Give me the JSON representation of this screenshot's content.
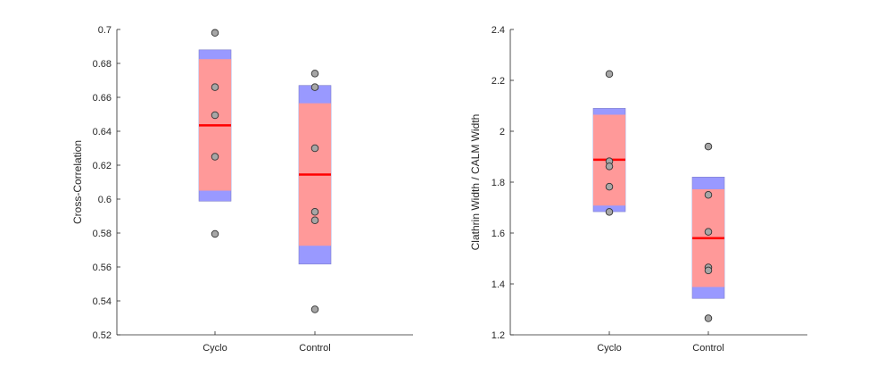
{
  "chart_data": [
    {
      "type": "box",
      "categories": [
        "Cyclo",
        "Control"
      ],
      "xlabel": "",
      "ylabel": "Cross-Correlation",
      "ylim": [
        0.52,
        0.7
      ],
      "yticks": [
        0.52,
        0.54,
        0.56,
        0.58,
        0.6,
        0.62,
        0.64,
        0.66,
        0.68,
        0.7
      ],
      "ytick_labels": [
        "0.52",
        "0.54",
        "0.56",
        "0.58",
        "0.6",
        "0.62",
        "0.64",
        "0.66",
        "0.68",
        "0.7"
      ],
      "grid": false,
      "boxes": [
        {
          "category": "Cyclo",
          "mean": 0.6435,
          "sd_low": 0.5988,
          "sd_high": 0.688,
          "ci_low": 0.605,
          "ci_high": 0.6825,
          "points": [
            0.698,
            0.666,
            0.6495,
            0.625,
            0.5795
          ]
        },
        {
          "category": "Control",
          "mean": 0.6145,
          "sd_low": 0.5617,
          "sd_high": 0.667,
          "ci_low": 0.5725,
          "ci_high": 0.6565,
          "points": [
            0.674,
            0.666,
            0.63,
            0.5925,
            0.5875,
            0.535
          ]
        }
      ]
    },
    {
      "type": "box",
      "categories": [
        "Cyclo",
        "Control"
      ],
      "xlabel": "",
      "ylabel": "Clathrin Width / CALM Width",
      "ylim": [
        1.2,
        2.4
      ],
      "yticks": [
        1.2,
        1.4,
        1.6,
        1.8,
        2.0,
        2.2,
        2.4
      ],
      "ytick_labels": [
        "1.2",
        "1.4",
        "1.6",
        "1.8",
        "2",
        "2.2",
        "2.4"
      ],
      "grid": false,
      "boxes": [
        {
          "category": "Cyclo",
          "mean": 1.888,
          "sd_low": 1.684,
          "sd_high": 2.09,
          "ci_low": 1.708,
          "ci_high": 2.065,
          "points": [
            2.225,
            1.882,
            1.862,
            1.782,
            1.683
          ]
        },
        {
          "category": "Control",
          "mean": 1.58,
          "sd_low": 1.343,
          "sd_high": 1.82,
          "ci_low": 1.388,
          "ci_high": 1.772,
          "points": [
            1.94,
            1.75,
            1.605,
            1.465,
            1.453,
            1.265
          ]
        }
      ]
    }
  ],
  "colors": {
    "sd_fill": "#9999ff",
    "ci_fill": "#ff9999",
    "mean_line": "#ff0000",
    "point_fill": "#a6a6a6",
    "point_edge": "#333333",
    "axis": "#262626"
  }
}
